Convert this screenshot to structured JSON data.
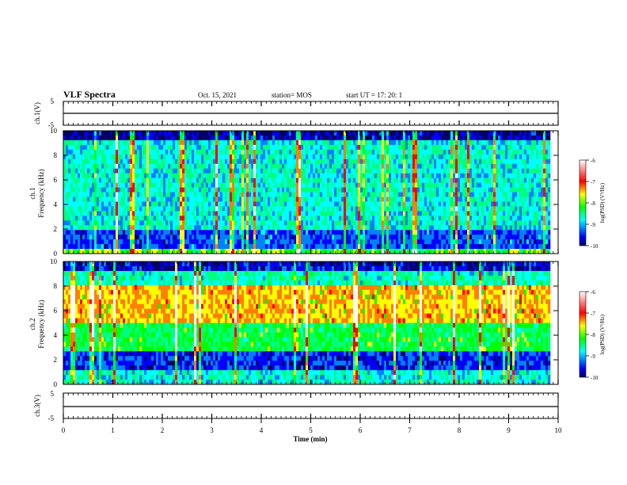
{
  "header": {
    "title": "VLF Spectra",
    "date": "Oct. 15, 2021",
    "station": "station= MOS",
    "start": "start UT =   17: 20: 1"
  },
  "chart_data": [
    {
      "type": "line",
      "panel": "ch1-waveform",
      "ylabel": "ch.1(V)",
      "yticks": [
        "5",
        "-5"
      ],
      "ylim": [
        -5,
        5
      ],
      "x": [
        0,
        10
      ],
      "values": [
        0,
        0
      ]
    },
    {
      "type": "heatmap",
      "panel": "ch1-spectrogram",
      "ylabel": "ch.1\nFrequency (kHz)",
      "yticks": [
        "0",
        "2",
        "4",
        "6",
        "8",
        "10"
      ],
      "ylim": [
        0,
        10
      ],
      "xlim": [
        0,
        9.8
      ],
      "colorbar": {
        "label": "log(PSD) (V²/Hz)",
        "ticks": [
          "-6",
          "-7",
          "-8",
          "-9",
          "-10"
        ],
        "range": [
          -10,
          -6
        ]
      }
    },
    {
      "type": "heatmap",
      "panel": "ch2-spectrogram",
      "ylabel": "ch.2\nFrequency (kHz)",
      "yticks": [
        "0",
        "2",
        "4",
        "6",
        "8",
        "10"
      ],
      "ylim": [
        0,
        10
      ],
      "xlim": [
        0,
        9.8
      ],
      "colorbar": {
        "label": "log(PSD) (V²/Hz)",
        "ticks": [
          "-6",
          "-7",
          "-8",
          "-9",
          "-10"
        ],
        "range": [
          -10,
          -6
        ]
      }
    },
    {
      "type": "line",
      "panel": "ch3-waveform",
      "ylabel": "ch.3(V)",
      "yticks": [
        "5",
        "-5"
      ],
      "ylim": [
        -5,
        5
      ],
      "x": [
        0,
        10
      ],
      "values": [
        0,
        0
      ]
    }
  ],
  "xaxis": {
    "label": "Time (min)",
    "ticks": [
      "0",
      "1",
      "2",
      "3",
      "4",
      "5",
      "6",
      "7",
      "8",
      "9",
      "10"
    ],
    "range": [
      0,
      10
    ]
  },
  "colors": {
    "cmap": [
      "#000066",
      "#0000ff",
      "#0080ff",
      "#00ffff",
      "#00ff80",
      "#00ff00",
      "#ffff00",
      "#ff8000",
      "#ff0000",
      "#ffffff"
    ]
  }
}
